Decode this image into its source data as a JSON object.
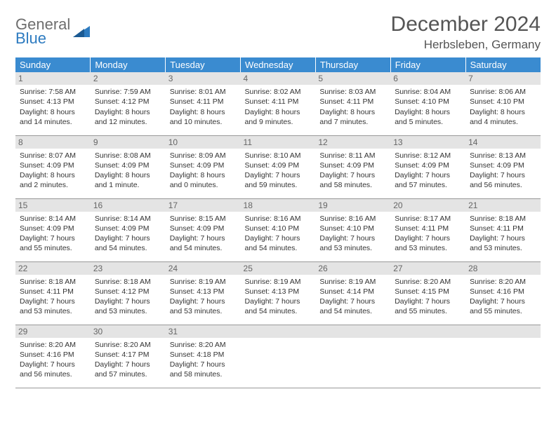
{
  "logo": {
    "word1": "General",
    "word2": "Blue"
  },
  "title": "December 2024",
  "location": "Herbsleben, Germany",
  "colors": {
    "header_bg": "#3a8bd0",
    "header_text": "#ffffff",
    "daynum_bg": "#e4e4e4",
    "border": "#999999",
    "logo_gray": "#6e6e6e",
    "logo_blue": "#2d7bc0"
  },
  "day_headers": [
    "Sunday",
    "Monday",
    "Tuesday",
    "Wednesday",
    "Thursday",
    "Friday",
    "Saturday"
  ],
  "weeks": [
    [
      {
        "n": "1",
        "sr": "7:58 AM",
        "ss": "4:13 PM",
        "dl": "8 hours and 14 minutes."
      },
      {
        "n": "2",
        "sr": "7:59 AM",
        "ss": "4:12 PM",
        "dl": "8 hours and 12 minutes."
      },
      {
        "n": "3",
        "sr": "8:01 AM",
        "ss": "4:11 PM",
        "dl": "8 hours and 10 minutes."
      },
      {
        "n": "4",
        "sr": "8:02 AM",
        "ss": "4:11 PM",
        "dl": "8 hours and 9 minutes."
      },
      {
        "n": "5",
        "sr": "8:03 AM",
        "ss": "4:11 PM",
        "dl": "8 hours and 7 minutes."
      },
      {
        "n": "6",
        "sr": "8:04 AM",
        "ss": "4:10 PM",
        "dl": "8 hours and 5 minutes."
      },
      {
        "n": "7",
        "sr": "8:06 AM",
        "ss": "4:10 PM",
        "dl": "8 hours and 4 minutes."
      }
    ],
    [
      {
        "n": "8",
        "sr": "8:07 AM",
        "ss": "4:09 PM",
        "dl": "8 hours and 2 minutes."
      },
      {
        "n": "9",
        "sr": "8:08 AM",
        "ss": "4:09 PM",
        "dl": "8 hours and 1 minute."
      },
      {
        "n": "10",
        "sr": "8:09 AM",
        "ss": "4:09 PM",
        "dl": "8 hours and 0 minutes."
      },
      {
        "n": "11",
        "sr": "8:10 AM",
        "ss": "4:09 PM",
        "dl": "7 hours and 59 minutes."
      },
      {
        "n": "12",
        "sr": "8:11 AM",
        "ss": "4:09 PM",
        "dl": "7 hours and 58 minutes."
      },
      {
        "n": "13",
        "sr": "8:12 AM",
        "ss": "4:09 PM",
        "dl": "7 hours and 57 minutes."
      },
      {
        "n": "14",
        "sr": "8:13 AM",
        "ss": "4:09 PM",
        "dl": "7 hours and 56 minutes."
      }
    ],
    [
      {
        "n": "15",
        "sr": "8:14 AM",
        "ss": "4:09 PM",
        "dl": "7 hours and 55 minutes."
      },
      {
        "n": "16",
        "sr": "8:14 AM",
        "ss": "4:09 PM",
        "dl": "7 hours and 54 minutes."
      },
      {
        "n": "17",
        "sr": "8:15 AM",
        "ss": "4:09 PM",
        "dl": "7 hours and 54 minutes."
      },
      {
        "n": "18",
        "sr": "8:16 AM",
        "ss": "4:10 PM",
        "dl": "7 hours and 54 minutes."
      },
      {
        "n": "19",
        "sr": "8:16 AM",
        "ss": "4:10 PM",
        "dl": "7 hours and 53 minutes."
      },
      {
        "n": "20",
        "sr": "8:17 AM",
        "ss": "4:11 PM",
        "dl": "7 hours and 53 minutes."
      },
      {
        "n": "21",
        "sr": "8:18 AM",
        "ss": "4:11 PM",
        "dl": "7 hours and 53 minutes."
      }
    ],
    [
      {
        "n": "22",
        "sr": "8:18 AM",
        "ss": "4:11 PM",
        "dl": "7 hours and 53 minutes."
      },
      {
        "n": "23",
        "sr": "8:18 AM",
        "ss": "4:12 PM",
        "dl": "7 hours and 53 minutes."
      },
      {
        "n": "24",
        "sr": "8:19 AM",
        "ss": "4:13 PM",
        "dl": "7 hours and 53 minutes."
      },
      {
        "n": "25",
        "sr": "8:19 AM",
        "ss": "4:13 PM",
        "dl": "7 hours and 54 minutes."
      },
      {
        "n": "26",
        "sr": "8:19 AM",
        "ss": "4:14 PM",
        "dl": "7 hours and 54 minutes."
      },
      {
        "n": "27",
        "sr": "8:20 AM",
        "ss": "4:15 PM",
        "dl": "7 hours and 55 minutes."
      },
      {
        "n": "28",
        "sr": "8:20 AM",
        "ss": "4:16 PM",
        "dl": "7 hours and 55 minutes."
      }
    ],
    [
      {
        "n": "29",
        "sr": "8:20 AM",
        "ss": "4:16 PM",
        "dl": "7 hours and 56 minutes."
      },
      {
        "n": "30",
        "sr": "8:20 AM",
        "ss": "4:17 PM",
        "dl": "7 hours and 57 minutes."
      },
      {
        "n": "31",
        "sr": "8:20 AM",
        "ss": "4:18 PM",
        "dl": "7 hours and 58 minutes."
      },
      {
        "empty": true
      },
      {
        "empty": true
      },
      {
        "empty": true
      },
      {
        "empty": true
      }
    ]
  ],
  "labels": {
    "sunrise": "Sunrise: ",
    "sunset": "Sunset: ",
    "daylight": "Daylight: "
  }
}
